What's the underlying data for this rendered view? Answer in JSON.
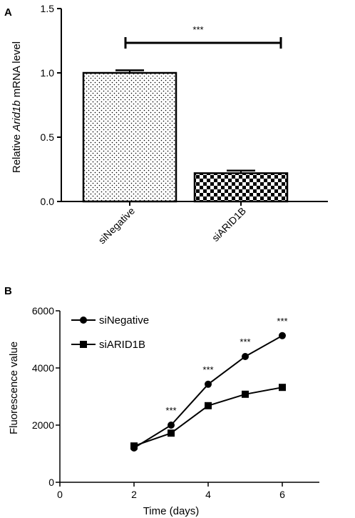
{
  "chart_data": [
    {
      "panel": "A",
      "type": "bar",
      "categories": [
        "siNegative",
        "siARID1B"
      ],
      "values": [
        1.0,
        0.22
      ],
      "errors": [
        0.02,
        0.02
      ],
      "ylabel": "Relative Arid1b mRNA level",
      "ylabel_parts": [
        "Relative ",
        "Arid1b",
        " mRNA level"
      ],
      "ylim": [
        0,
        1.5
      ],
      "yticks": [
        "0.0",
        "0.5",
        "1.0",
        "1.5"
      ],
      "significance": "***",
      "patterns": [
        "dots",
        "checkerboard"
      ]
    },
    {
      "panel": "B",
      "type": "line",
      "x": [
        2,
        3,
        4,
        5,
        6
      ],
      "series": [
        {
          "name": "siNegative",
          "marker": "circle",
          "values": [
            1200,
            2000,
            3430,
            4400,
            5130
          ]
        },
        {
          "name": "siARID1B",
          "marker": "square",
          "values": [
            1270,
            1720,
            2680,
            3080,
            3320
          ]
        }
      ],
      "significance": [
        "***",
        "***",
        "***",
        "***"
      ],
      "xlabel": "Time (days)",
      "ylabel": "Fluorescence value",
      "xlim": [
        0,
        7
      ],
      "ylim": [
        0,
        6000
      ],
      "xticks": [
        "0",
        "2",
        "4",
        "6"
      ],
      "yticks": [
        "0",
        "2000",
        "4000",
        "6000"
      ],
      "legend_position": "top-left"
    }
  ]
}
